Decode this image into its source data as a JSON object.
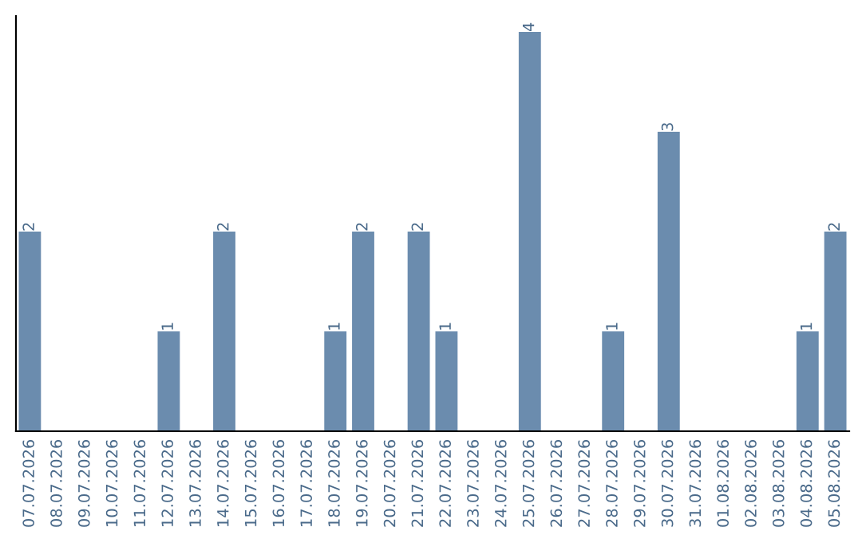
{
  "chart_data": {
    "type": "bar",
    "categories": [
      "07.07.2026",
      "08.07.2026",
      "09.07.2026",
      "10.07.2026",
      "11.07.2026",
      "12.07.2026",
      "13.07.2026",
      "14.07.2026",
      "15.07.2026",
      "16.07.2026",
      "17.07.2026",
      "18.07.2026",
      "19.07.2026",
      "20.07.2026",
      "21.07.2026",
      "22.07.2026",
      "23.07.2026",
      "24.07.2026",
      "25.07.2026",
      "26.07.2026",
      "27.07.2026",
      "28.07.2026",
      "29.07.2026",
      "30.07.2026",
      "31.07.2026",
      "01.08.2026",
      "02.08.2026",
      "03.08.2026",
      "04.08.2026",
      "05.08.2026"
    ],
    "values": [
      2,
      0,
      0,
      0,
      0,
      1,
      0,
      2,
      0,
      0,
      0,
      1,
      2,
      0,
      2,
      1,
      0,
      0,
      4,
      0,
      0,
      1,
      0,
      3,
      0,
      0,
      0,
      0,
      1,
      2
    ],
    "value_labels": [
      "2",
      null,
      null,
      null,
      null,
      "1",
      null,
      "2",
      null,
      null,
      null,
      "1",
      "2",
      null,
      "2",
      "1",
      null,
      null,
      "4",
      null,
      null,
      "1",
      null,
      "3",
      null,
      null,
      null,
      null,
      "1",
      "2"
    ],
    "color": "#6b8cae",
    "tick_labels": "x",
    "grid": false,
    "legend": false
  }
}
